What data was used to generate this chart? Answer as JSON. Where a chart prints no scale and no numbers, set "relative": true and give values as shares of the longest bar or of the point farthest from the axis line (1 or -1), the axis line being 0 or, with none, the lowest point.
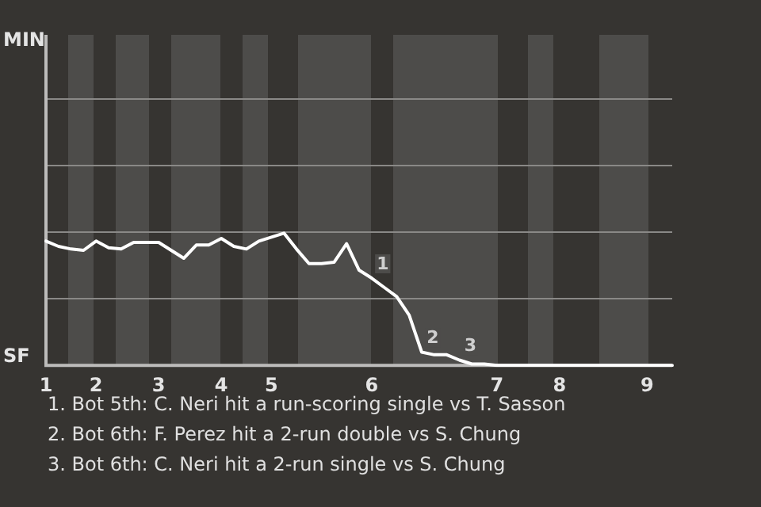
{
  "chart_data": {
    "type": "line",
    "relative": true,
    "categories": [
      "1",
      null,
      null,
      null,
      "2",
      null,
      null,
      null,
      null,
      "3",
      null,
      null,
      null,
      null,
      "4",
      null,
      null,
      null,
      "5",
      null,
      null,
      null,
      null,
      null,
      null,
      null,
      "6",
      null,
      null,
      null,
      null,
      null,
      null,
      null,
      null,
      null,
      "7",
      null,
      null,
      null,
      null,
      "8",
      null,
      null,
      null,
      null,
      null,
      null,
      "9",
      null,
      null
    ],
    "series": [
      {
        "color": "#ffffff",
        "values": [
          0.94,
          0.9,
          0.88,
          0.87,
          0.94,
          0.89,
          0.88,
          0.93,
          0.93,
          0.93,
          0.87,
          0.81,
          0.91,
          0.91,
          0.96,
          0.9,
          0.88,
          0.94,
          0.97,
          1,
          0.88,
          0.77,
          0.77,
          0.78,
          0.92,
          0.72,
          0.66,
          0.59,
          0.52,
          0.38,
          0.1,
          0.08,
          0.08,
          0.04,
          0.01,
          0.01,
          0,
          0,
          0,
          0,
          0,
          0,
          0,
          0,
          0,
          0,
          0,
          0,
          0,
          0,
          0
        ]
      }
    ],
    "ref_lines": [
      {
        "axis": "y",
        "value": 0.51,
        "color": "#8a8987"
      },
      {
        "axis": "y",
        "value": 1.01,
        "color": "#8a8987"
      },
      {
        "axis": "y",
        "value": 1.52,
        "color": "#8a8987"
      },
      {
        "axis": "y",
        "value": 2.02,
        "color": "#8a8987"
      }
    ],
    "legend": false,
    "marker": "none",
    "line_style": "solid",
    "annotations": [
      "MIN",
      "SF",
      {
        "text": "1",
        "y": 0.66
      },
      {
        "text": "2",
        "y": 0.1
      },
      {
        "text": "3",
        "y": 0.04
      },
      "1. Bot 5th: C. Neri hit a run-scoring single vs T. Sasson",
      "2. Bot 6th: F. Perez hit a 2-run double vs S. Chung",
      "3. Bot 6th: C. Neri hit a 2-run single vs S. Chung"
    ]
  }
}
